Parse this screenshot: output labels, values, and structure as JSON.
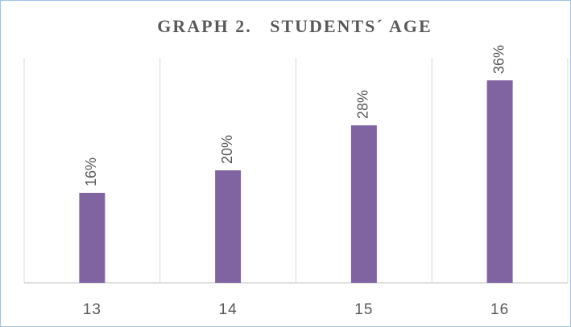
{
  "chart_data": {
    "type": "bar",
    "title": "GRAPH 2.   STUDENTS´ AGE",
    "categories": [
      "13",
      "14",
      "15",
      "16"
    ],
    "values": [
      16,
      20,
      28,
      36
    ],
    "value_labels": [
      "16%",
      "20%",
      "28%",
      "36%"
    ],
    "color": "#8064a2",
    "ylim": [
      0,
      40
    ]
  }
}
